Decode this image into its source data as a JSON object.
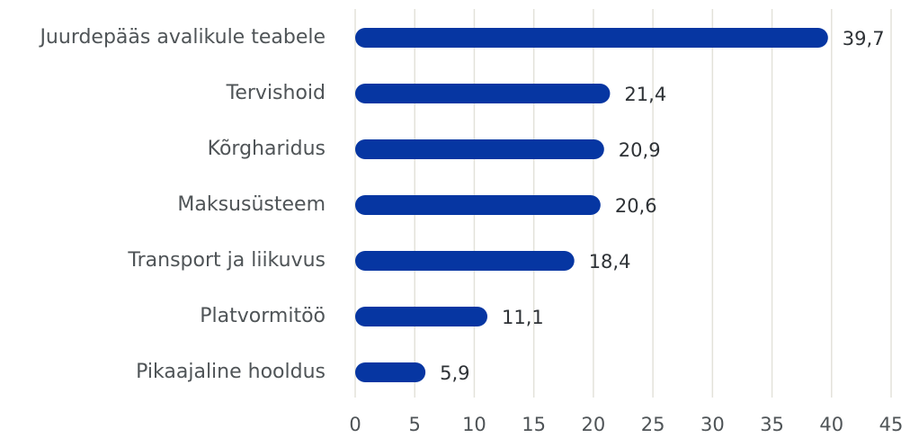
{
  "chart_data": {
    "type": "bar",
    "orientation": "horizontal",
    "categories": [
      "Juurdepääs avalikule teabele",
      "Tervishoid",
      "Kõrgharidus",
      "Maksusüsteem",
      "Transport ja liikuvus",
      "Platvormitöö",
      "Pikaajaline hooldus"
    ],
    "values": [
      39.7,
      21.4,
      20.9,
      20.6,
      18.4,
      11.1,
      5.9
    ],
    "value_labels": [
      "39,7",
      "21,4",
      "20,9",
      "20,6",
      "18,4",
      "11,1",
      "5,9"
    ],
    "color": "#0636a2",
    "xlim": [
      0,
      45
    ],
    "xticks": [
      0,
      5,
      10,
      15,
      20,
      25,
      30,
      35,
      40,
      45
    ],
    "grid": true
  }
}
